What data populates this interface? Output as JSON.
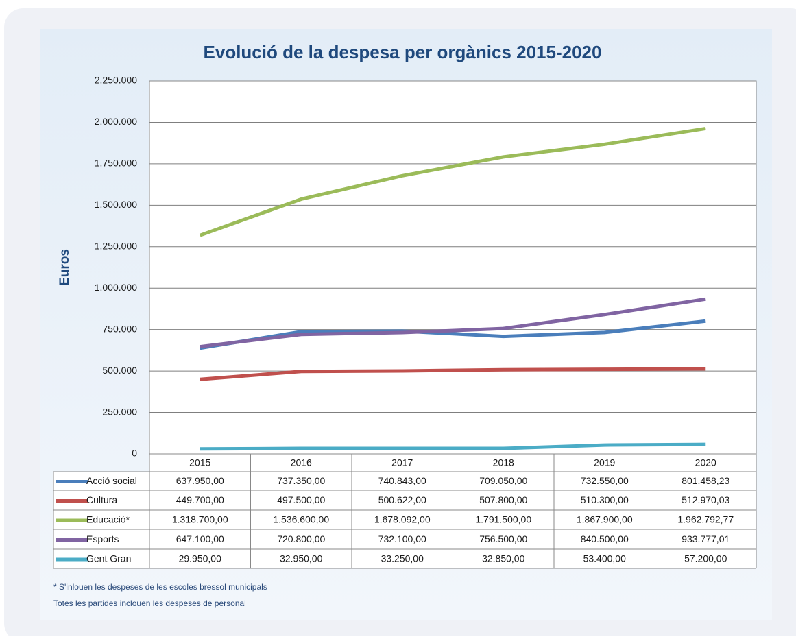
{
  "chart_data": {
    "type": "line",
    "title": "Evolució de la despesa per orgànics 2015-2020",
    "y_label": "Euros",
    "categories": [
      "2015",
      "2016",
      "2017",
      "2018",
      "2019",
      "2020"
    ],
    "series": [
      {
        "name": "Acció social",
        "color": "#4a7ebb",
        "values": [
          637950,
          737350,
          740843,
          709050,
          732550,
          801458.23
        ],
        "value_labels": [
          "637.950,00",
          "737.350,00",
          "740.843,00",
          "709.050,00",
          "732.550,00",
          "801.458,23"
        ]
      },
      {
        "name": "Cultura",
        "color": "#c0504d",
        "values": [
          449700,
          497500,
          500622,
          507800,
          510300,
          512970.03
        ],
        "value_labels": [
          "449.700,00",
          "497.500,00",
          "500.622,00",
          "507.800,00",
          "510.300,00",
          "512.970,03"
        ]
      },
      {
        "name": "Educació*",
        "color": "#9bbb59",
        "values": [
          1318700,
          1536600,
          1678092,
          1791500,
          1867900,
          1962792.77
        ],
        "value_labels": [
          "1.318.700,00",
          "1.536.600,00",
          "1.678.092,00",
          "1.791.500,00",
          "1.867.900,00",
          "1.962.792,77"
        ]
      },
      {
        "name": "Esports",
        "color": "#8064a2",
        "values": [
          647100,
          720800,
          732100,
          756500,
          840500,
          933777.01
        ],
        "value_labels": [
          "647.100,00",
          "720.800,00",
          "732.100,00",
          "756.500,00",
          "840.500,00",
          "933.777,01"
        ]
      },
      {
        "name": "Gent Gran",
        "color": "#4bacc6",
        "values": [
          29950,
          32950,
          33250,
          32850,
          53400,
          57200
        ],
        "value_labels": [
          "29.950,00",
          "32.950,00",
          "33.250,00",
          "32.850,00",
          "53.400,00",
          "57.200,00"
        ]
      }
    ],
    "ylim": [
      0,
      2250000
    ],
    "yticks": [
      0,
      {
        "value": 250000,
        "label": "250.000"
      },
      {
        "value": 500000,
        "label": "500.000"
      },
      {
        "value": 750000,
        "label": "750.000"
      },
      {
        "value": 1000000,
        "label": "1.000.000"
      },
      {
        "value": 1250000,
        "label": "1.250.000"
      },
      {
        "value": 1500000,
        "label": "1.500.000"
      },
      {
        "value": 1750000,
        "label": "1.750.000"
      },
      {
        "value": 2000000,
        "label": "2.000.000"
      },
      {
        "value": 2250000,
        "label": "2.250.000"
      }
    ],
    "grid": true,
    "notes": [
      "* S'inlouen les despeses de les escoles bressol municipals",
      "Totes les partides inclouen les despeses de personal"
    ]
  }
}
